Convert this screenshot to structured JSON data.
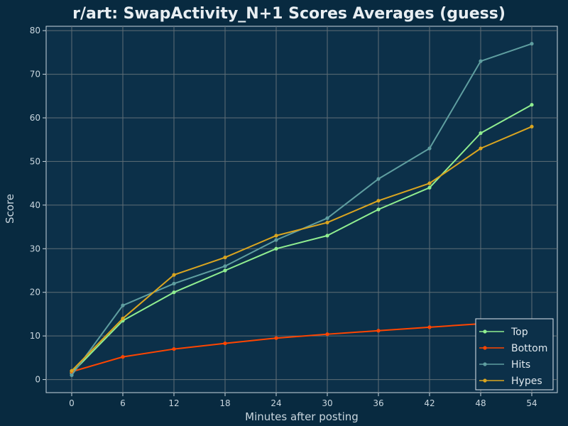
{
  "chart_data": {
    "type": "line",
    "title": "r/art: SwapActivity_N+1 Scores Averages (guess)",
    "xlabel": "Minutes after posting",
    "ylabel": "Score",
    "x": [
      0,
      6,
      12,
      18,
      24,
      30,
      36,
      42,
      48,
      54
    ],
    "xticks": [
      0,
      6,
      12,
      18,
      24,
      30,
      36,
      42,
      48,
      54
    ],
    "yticks": [
      0,
      10,
      20,
      30,
      40,
      50,
      60,
      70,
      80
    ],
    "xlim": [
      -3,
      57
    ],
    "ylim": [
      -3,
      81
    ],
    "grid": true,
    "legend_position": "bottom-right",
    "series": [
      {
        "name": "Top",
        "color": "#90ee90",
        "values": [
          1.5,
          13.5,
          20,
          25,
          30,
          33,
          39,
          44,
          56.5,
          63
        ]
      },
      {
        "name": "Bottom",
        "color": "#ff4500",
        "values": [
          1.8,
          5.2,
          7,
          8.3,
          9.5,
          10.4,
          11.2,
          12,
          12.8,
          13.5
        ]
      },
      {
        "name": "Hits",
        "color": "#5f9ea0",
        "values": [
          1,
          17,
          22,
          26,
          32,
          37,
          46,
          53,
          73,
          77
        ]
      },
      {
        "name": "Hypes",
        "color": "#daa520",
        "values": [
          2,
          14,
          24,
          28,
          33,
          36,
          41,
          45,
          53,
          58
        ]
      }
    ]
  },
  "colors": {
    "background": "#082a40",
    "plot_background": "#0c3049",
    "grid": "#5f6e76",
    "axis_text": "#c9d6de"
  }
}
